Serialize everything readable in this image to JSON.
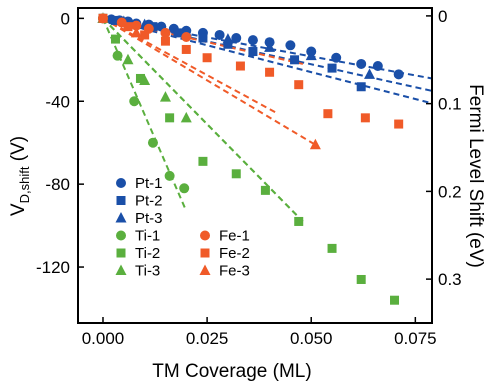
{
  "chart_data": {
    "type": "scatter",
    "xlabel": "TM Coverage (ML)",
    "ylabel_main": "V",
    "ylabel_sub": "D,shift",
    "ylabel_unit": " (V)",
    "y2label": "Fermi Level Shift (eV)",
    "xlim": [
      -0.006,
      0.079
    ],
    "ylim": [
      -147,
      5
    ],
    "y2lim": [
      -0.009,
      0.35
    ],
    "x_ticks": [
      {
        "value": 0.0,
        "label": "0.000"
      },
      {
        "value": 0.025,
        "label": "0.025"
      },
      {
        "value": 0.05,
        "label": "0.050"
      },
      {
        "value": 0.075,
        "label": "0.075"
      }
    ],
    "y_ticks": [
      {
        "value": 0,
        "label": "0"
      },
      {
        "value": -40,
        "label": "-40"
      },
      {
        "value": -80,
        "label": "-80"
      },
      {
        "value": -120,
        "label": "-120"
      }
    ],
    "y2_ticks": [
      {
        "value": 0,
        "label": "0"
      },
      {
        "value": 0.1,
        "label": "0.1"
      },
      {
        "value": 0.2,
        "label": "0.2"
      },
      {
        "value": 0.3,
        "label": "0.3"
      }
    ],
    "series": [
      {
        "name": "Pt-1",
        "color": "#1a4fa8",
        "marker": "circle",
        "x": [
          0.0,
          0.002,
          0.004,
          0.006,
          0.008,
          0.011,
          0.014,
          0.017,
          0.02,
          0.024,
          0.028,
          0.032,
          0.036,
          0.04,
          0.045,
          0.05,
          0.056,
          0.062,
          0.066,
          0.071
        ],
        "y": [
          0,
          -0.5,
          -1,
          -1.5,
          -2.5,
          -3,
          -4,
          -5,
          -6,
          -7,
          -8,
          -9.5,
          -10.5,
          -11.5,
          -13,
          -16,
          -19,
          -22,
          -23,
          -27
        ],
        "fit": [
          [
            0,
            0
          ],
          [
            0.079,
            -29
          ]
        ]
      },
      {
        "name": "Pt-2",
        "color": "#1a4fa8",
        "marker": "square",
        "x": [
          0.0,
          0.003,
          0.006,
          0.012,
          0.018,
          0.024,
          0.03,
          0.036,
          0.046,
          0.055,
          0.062
        ],
        "y": [
          0,
          -1,
          -2.5,
          -4,
          -7,
          -9.5,
          -12.5,
          -16,
          -20,
          -24,
          -33
        ],
        "fit": [
          [
            0,
            0
          ],
          [
            0.079,
            -41
          ]
        ]
      },
      {
        "name": "Pt-3",
        "color": "#1a4fa8",
        "marker": "triangle",
        "x": [
          0.0,
          0.005,
          0.01,
          0.02,
          0.03,
          0.04,
          0.05,
          0.064
        ],
        "y": [
          0,
          -1.5,
          -3,
          -6.5,
          -10,
          -14,
          -18,
          -27
        ],
        "fit": [
          [
            0,
            0
          ],
          [
            0.079,
            -35
          ]
        ]
      },
      {
        "name": "Ti-1",
        "color": "#5aaf3e",
        "marker": "circle",
        "x": [
          0.0,
          0.0035,
          0.0075,
          0.012,
          0.016,
          0.0195
        ],
        "y": [
          0,
          -18,
          -40,
          -60,
          -76,
          -82
        ],
        "fit": [
          [
            0,
            0
          ],
          [
            0.02,
            -93
          ]
        ]
      },
      {
        "name": "Ti-2",
        "color": "#5aaf3e",
        "marker": "square",
        "x": [
          0.0,
          0.003,
          0.009,
          0.016,
          0.024,
          0.032,
          0.039,
          0.047,
          0.055,
          0.062,
          0.07
        ],
        "y": [
          0,
          -10,
          -29,
          -48,
          -69,
          -75,
          -83,
          -98,
          -111,
          -126,
          -136
        ],
        "fit": [
          [
            0,
            0
          ],
          [
            0.048,
            -98
          ]
        ]
      },
      {
        "name": "Ti-3",
        "color": "#5aaf3e",
        "marker": "triangle",
        "x": [
          0.0,
          0.006,
          0.01,
          0.015,
          0.02
        ],
        "y": [
          0,
          -20,
          -30,
          -38,
          -48
        ],
        "fit": [
          [
            0,
            0
          ],
          [
            0.047,
            -96
          ]
        ]
      },
      {
        "name": "Fe-1",
        "color": "#f05a28",
        "marker": "circle",
        "x": [
          0.0,
          0.0045,
          0.008,
          0.011,
          0.015,
          0.02
        ],
        "y": [
          0,
          -2,
          -3.5,
          -5,
          -7,
          -9
        ],
        "fit": [
          [
            0,
            0
          ],
          [
            0.048,
            -22
          ]
        ]
      },
      {
        "name": "Fe-2",
        "color": "#f05a28",
        "marker": "square",
        "x": [
          0.0,
          0.006,
          0.01,
          0.015,
          0.02,
          0.025,
          0.033,
          0.04,
          0.047,
          0.054,
          0.063,
          0.071
        ],
        "y": [
          0,
          -4,
          -8,
          -11,
          -15,
          -19,
          -23,
          -26,
          -32,
          -46,
          -48,
          -51
        ],
        "fit": [
          [
            0,
            0
          ],
          [
            0.042,
            -46
          ]
        ]
      },
      {
        "name": "Fe-3",
        "color": "#f05a28",
        "marker": "triangle",
        "x": [
          0.008,
          0.051
        ],
        "y": [
          -7,
          -61
        ],
        "fit": [
          [
            0,
            0
          ],
          [
            0.051,
            -61
          ]
        ]
      }
    ],
    "legend": {
      "placement": "lower-left",
      "columns": [
        [
          "Pt-1",
          "Pt-2",
          "Pt-3",
          "Ti-1",
          "Ti-2",
          "Ti-3"
        ],
        [
          "Fe-1",
          "Fe-2",
          "Fe-3"
        ]
      ]
    }
  }
}
